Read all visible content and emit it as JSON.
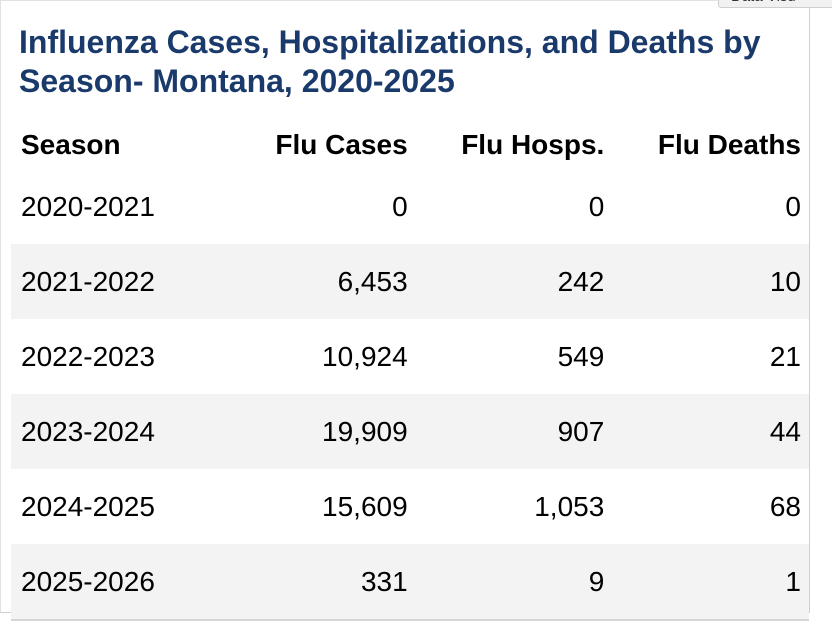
{
  "overlay": {
    "corner_label": "Data Visu"
  },
  "chart_data": {
    "type": "table",
    "title": "Influenza Cases, Hospitalizations, and Deaths by Season- Montana, 2020-2025",
    "columns": [
      "Season",
      "Flu Cases",
      "Flu Hosps.",
      "Flu Deaths"
    ],
    "rows": [
      [
        "2020-2021",
        "0",
        "0",
        "0"
      ],
      [
        "2021-2022",
        "6,453",
        "242",
        "10"
      ],
      [
        "2022-2023",
        "10,924",
        "549",
        "21"
      ],
      [
        "2023-2024",
        "19,909",
        "907",
        "44"
      ],
      [
        "2024-2025",
        "15,609",
        "1,053",
        "68"
      ],
      [
        "2025-2026",
        "331",
        "9",
        "1"
      ]
    ],
    "colors": {
      "title": "#1a3a6b",
      "stripe": "#f3f3f3",
      "text": "#000000"
    }
  }
}
